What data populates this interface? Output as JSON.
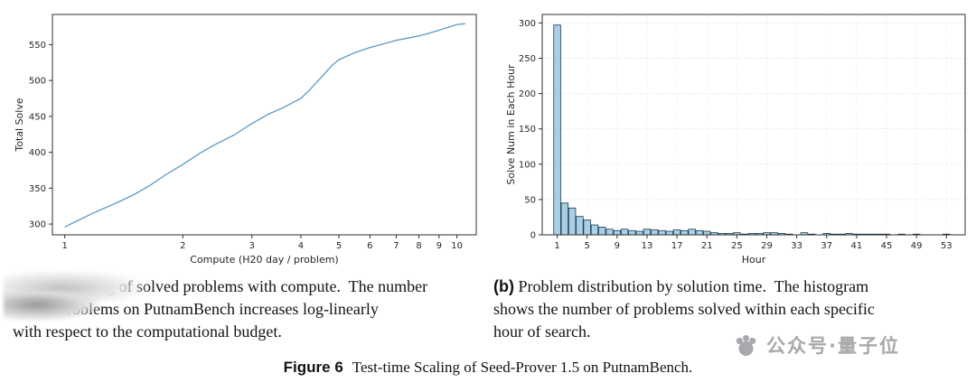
{
  "figure": {
    "caption_label": "Figure 6",
    "caption_text": "Test-time Scaling of Seed-Prover 1.5 on PutnamBench."
  },
  "captions": {
    "a": {
      "visible_lines": [
        "g of solved problems with compute.  The number",
        "roblems on PutnamBench increases log-linearly",
        "with respect to the computational budget."
      ]
    },
    "b": {
      "label": "(b)",
      "lines": [
        " Problem distribution by solution time.  The histogram",
        "shows the number of problems solved within each specific",
        "hour of search."
      ]
    }
  },
  "watermark": {
    "icon": "qbitai-paw-logo",
    "text": "公众号·量子位"
  },
  "chart_data": [
    {
      "type": "line",
      "title": "",
      "xlabel": "Compute (H20 day / problem)",
      "ylabel": "Total Solve",
      "xscale": "log",
      "xlim": [
        0.93,
        11.2
      ],
      "ylim": [
        285,
        592
      ],
      "xticks": [
        1,
        2,
        3,
        4,
        5,
        6,
        7,
        8,
        9,
        10
      ],
      "yticks": [
        300,
        350,
        400,
        450,
        500,
        550
      ],
      "grid": false,
      "line_color": "#5b9bc8",
      "x": [
        1.0,
        1.1,
        1.2,
        1.35,
        1.5,
        1.65,
        1.8,
        2.0,
        2.2,
        2.4,
        2.7,
        3.0,
        3.3,
        3.6,
        4.0,
        4.2,
        4.5,
        4.8,
        5.0,
        5.5,
        6.0,
        6.5,
        7.0,
        7.5,
        8.0,
        8.5,
        9.0,
        9.5,
        10.0,
        10.5
      ],
      "y": [
        296,
        307,
        317,
        329,
        341,
        354,
        368,
        383,
        398,
        410,
        424,
        440,
        453,
        462,
        475,
        486,
        504,
        521,
        529,
        539,
        546,
        551,
        556,
        559,
        562,
        566,
        570,
        574,
        578,
        579
      ]
    },
    {
      "type": "bar",
      "title": "",
      "xlabel": "Hour",
      "ylabel": "Solve Num in Each Hour",
      "xlim": [
        -1,
        55.5
      ],
      "ylim": [
        0,
        312
      ],
      "xticks": [
        1,
        5,
        9,
        13,
        17,
        21,
        25,
        29,
        33,
        37,
        41,
        45,
        49,
        53
      ],
      "yticks": [
        0,
        50,
        100,
        150,
        200,
        250,
        300
      ],
      "grid": true,
      "bar_fill": "#a9cfe5",
      "bar_edge": "#1b3a52",
      "categories": [
        1,
        2,
        3,
        4,
        5,
        6,
        7,
        8,
        9,
        10,
        11,
        12,
        13,
        14,
        15,
        16,
        17,
        18,
        19,
        20,
        21,
        22,
        23,
        24,
        25,
        26,
        27,
        28,
        29,
        30,
        31,
        32,
        33,
        34,
        35,
        36,
        37,
        38,
        39,
        40,
        41,
        42,
        43,
        44,
        45,
        46,
        47,
        48,
        49,
        50,
        51,
        52,
        53
      ],
      "values": [
        297,
        45,
        38,
        26,
        21,
        14,
        11,
        8,
        6,
        8,
        6,
        5,
        8,
        7,
        6,
        5,
        7,
        6,
        8,
        6,
        5,
        3,
        2,
        2,
        3,
        1,
        2,
        2,
        3,
        3,
        2,
        1,
        0,
        3,
        1,
        0,
        2,
        1,
        1,
        2,
        1,
        1,
        1,
        1,
        1,
        0,
        1,
        0,
        1,
        0,
        0,
        0,
        1
      ]
    }
  ]
}
